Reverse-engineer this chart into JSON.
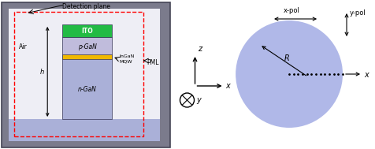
{
  "fig_width": 4.76,
  "fig_height": 1.89,
  "dpi": 100,
  "bg_outer": "#7b7b8c",
  "bg_inner": "#eeeef5",
  "substrate_color": "#aab0d8",
  "ngan_color": "#aab0d8",
  "pgan_color": "#c0bcdc",
  "ito_color": "#22bb44",
  "mqw_color": "#f0b800",
  "circle_color": "#b0b8e8",
  "detection_plane_label": "Detection plane",
  "pml_label": "PML",
  "air_label": "Air",
  "ito_label": "ITO",
  "pgan_label": "p-GaN",
  "ngan_label": "n-GaN",
  "mqw_label": "InGaN\nMQW",
  "h_label": "h",
  "R_label": "R",
  "xpol_label": "x-pol",
  "ypol_label": "y-pol",
  "x_axis_label": "x",
  "z_axis_label": "z",
  "y_axis_label": "y"
}
